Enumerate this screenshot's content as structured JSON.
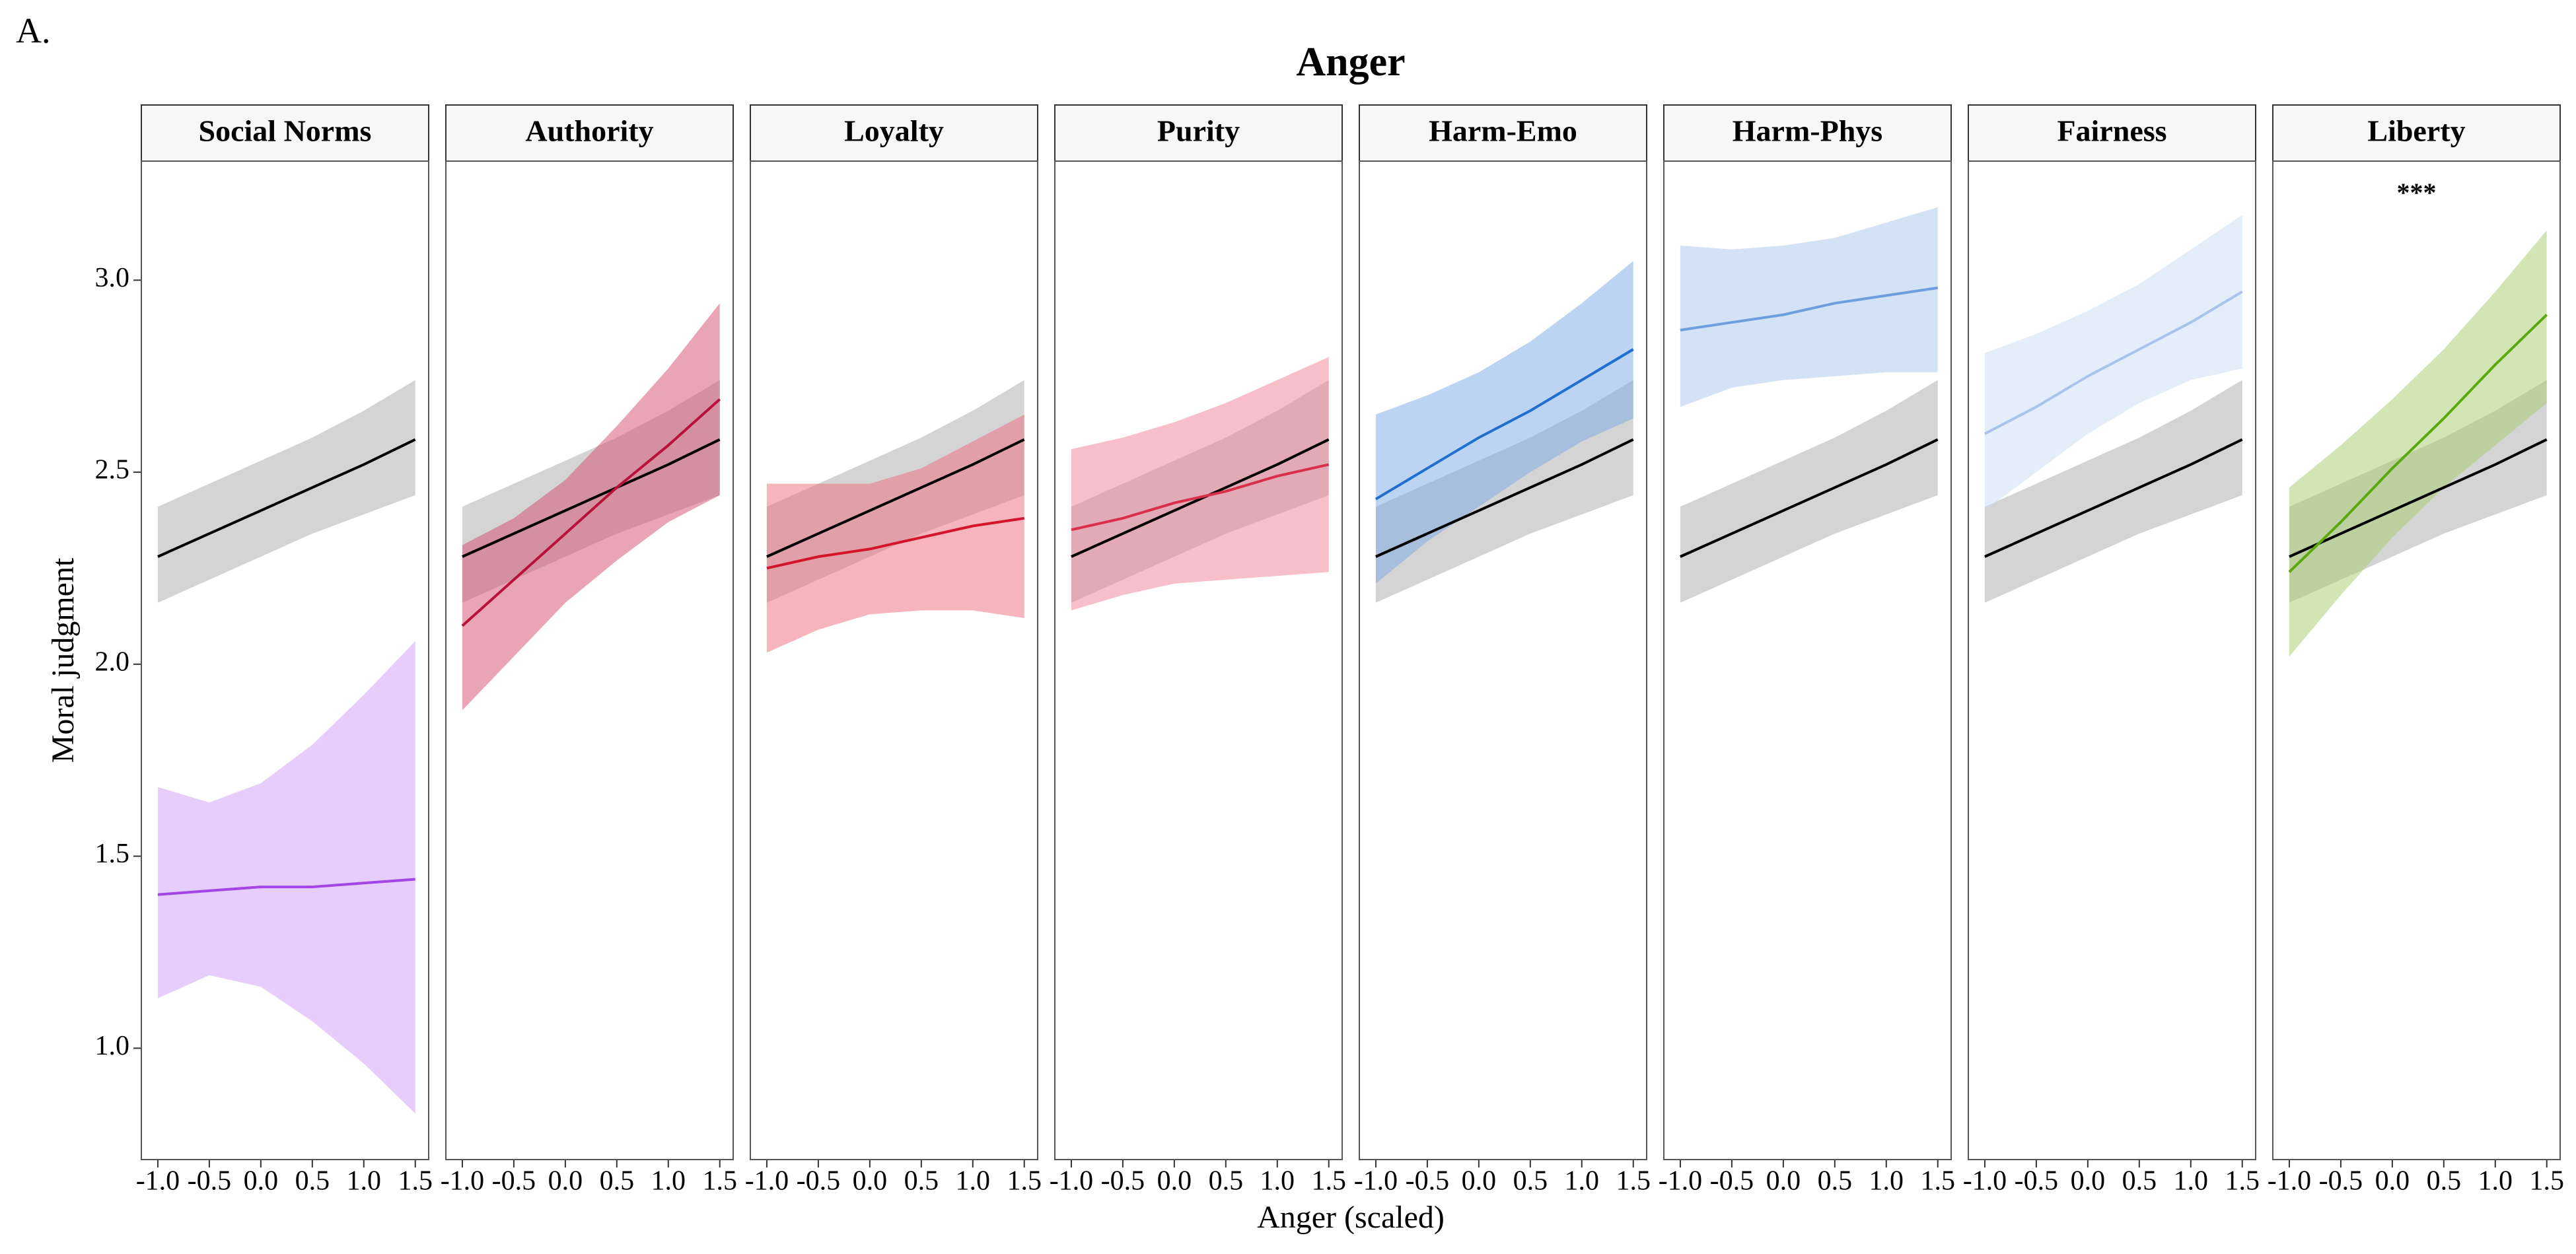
{
  "panel_label": "A.",
  "title": "Anger",
  "x_label": "Anger (scaled)",
  "y_label": "Moral judgment",
  "chart_data": [
    {
      "type": "line",
      "title": "Social Norms",
      "x": [
        -1.0,
        -0.5,
        0.0,
        0.5,
        1.0,
        1.5
      ],
      "xlim": [
        -1.16,
        1.63
      ],
      "ylim": [
        0.71,
        3.31
      ],
      "xticks": [
        {
          "value": -1.0,
          "label": "-1.0"
        },
        -0.5,
        {
          "value": 0.0,
          "label": "0.0"
        },
        0.5,
        {
          "value": 1.0,
          "label": "1.0"
        },
        1.5
      ],
      "yticks": [
        {
          "value": 1.0,
          "label": "1.0"
        },
        1.5,
        {
          "value": 2.0,
          "label": "2.0"
        },
        2.5,
        {
          "value": 3.0,
          "label": "3.0"
        }
      ],
      "series": [
        {
          "color": "#000000",
          "fill": "#a9a9a9",
          "values": [
            2.28,
            2.34,
            2.4,
            2.46,
            2.52,
            2.585
          ],
          "lower": [
            2.16,
            2.22,
            2.28,
            2.34,
            2.39,
            2.44
          ],
          "upper": [
            2.41,
            2.47,
            2.53,
            2.59,
            2.66,
            2.74
          ]
        },
        {
          "color": "#a445e8",
          "fill": "#cf9cf7",
          "values": [
            1.4,
            1.41,
            1.42,
            1.42,
            1.43,
            1.44
          ],
          "lower": [
            1.13,
            1.19,
            1.16,
            1.07,
            0.96,
            0.83
          ],
          "upper": [
            1.68,
            1.64,
            1.69,
            1.79,
            1.92,
            2.06
          ]
        }
      ]
    },
    {
      "type": "line",
      "title": "Authority",
      "x": [
        -1.0,
        -0.5,
        0.0,
        0.5,
        1.0,
        1.5
      ],
      "xlim": [
        -1.16,
        1.63
      ],
      "ylim": [
        0.71,
        3.31
      ],
      "xticks": [
        {
          "value": -1.0,
          "label": "-1.0"
        },
        -0.5,
        {
          "value": 0.0,
          "label": "0.0"
        },
        0.5,
        {
          "value": 1.0,
          "label": "1.0"
        },
        1.5
      ],
      "series": [
        {
          "color": "#000000",
          "fill": "#a9a9a9",
          "values": [
            2.28,
            2.34,
            2.4,
            2.46,
            2.52,
            2.585
          ],
          "lower": [
            2.16,
            2.22,
            2.28,
            2.34,
            2.39,
            2.44
          ],
          "upper": [
            2.41,
            2.47,
            2.53,
            2.59,
            2.66,
            2.74
          ]
        },
        {
          "color": "#b8123a",
          "fill": "#d44c6c",
          "values": [
            2.1,
            2.22,
            2.34,
            2.46,
            2.57,
            2.69
          ],
          "lower": [
            1.88,
            2.02,
            2.16,
            2.27,
            2.37,
            2.44
          ],
          "upper": [
            2.31,
            2.38,
            2.48,
            2.62,
            2.77,
            2.94
          ]
        }
      ]
    },
    {
      "type": "line",
      "title": "Loyalty",
      "x": [
        -1.0,
        -0.5,
        0.0,
        0.5,
        1.0,
        1.5
      ],
      "xlim": [
        -1.16,
        1.63
      ],
      "ylim": [
        0.71,
        3.31
      ],
      "xticks": [
        {
          "value": -1.0,
          "label": "-1.0"
        },
        -0.5,
        {
          "value": 0.0,
          "label": "0.0"
        },
        0.5,
        {
          "value": 1.0,
          "label": "1.0"
        },
        1.5
      ],
      "series": [
        {
          "color": "#000000",
          "fill": "#a9a9a9",
          "values": [
            2.28,
            2.34,
            2.4,
            2.46,
            2.52,
            2.585
          ],
          "lower": [
            2.16,
            2.22,
            2.28,
            2.34,
            2.39,
            2.44
          ],
          "upper": [
            2.41,
            2.47,
            2.53,
            2.59,
            2.66,
            2.74
          ]
        },
        {
          "color": "#d4142a",
          "fill": "#ee6a7c",
          "values": [
            2.25,
            2.28,
            2.3,
            2.33,
            2.36,
            2.38
          ],
          "lower": [
            2.03,
            2.09,
            2.13,
            2.14,
            2.14,
            2.12
          ],
          "upper": [
            2.47,
            2.47,
            2.47,
            2.51,
            2.58,
            2.65
          ]
        }
      ]
    },
    {
      "type": "line",
      "title": "Purity",
      "x": [
        -1.0,
        -0.5,
        0.0,
        0.5,
        1.0,
        1.5
      ],
      "xlim": [
        -1.16,
        1.63
      ],
      "ylim": [
        0.71,
        3.31
      ],
      "xticks": [
        {
          "value": -1.0,
          "label": "-1.0"
        },
        -0.5,
        {
          "value": 0.0,
          "label": "0.0"
        },
        0.5,
        {
          "value": 1.0,
          "label": "1.0"
        },
        1.5
      ],
      "series": [
        {
          "color": "#000000",
          "fill": "#a9a9a9",
          "values": [
            2.28,
            2.34,
            2.4,
            2.46,
            2.52,
            2.585
          ],
          "lower": [
            2.16,
            2.22,
            2.28,
            2.34,
            2.39,
            2.44
          ],
          "upper": [
            2.41,
            2.47,
            2.53,
            2.59,
            2.66,
            2.74
          ]
        },
        {
          "color": "#d92f4b",
          "fill": "#ee7f95",
          "values": [
            2.35,
            2.38,
            2.42,
            2.45,
            2.49,
            2.52
          ],
          "lower": [
            2.14,
            2.18,
            2.21,
            2.22,
            2.23,
            2.24
          ],
          "upper": [
            2.56,
            2.59,
            2.63,
            2.68,
            2.74,
            2.8
          ]
        }
      ]
    },
    {
      "type": "line",
      "title": "Harm-Emo",
      "x": [
        -1.0,
        -0.5,
        0.0,
        0.5,
        1.0,
        1.5
      ],
      "xlim": [
        -1.16,
        1.63
      ],
      "ylim": [
        0.71,
        3.31
      ],
      "xticks": [
        {
          "value": -1.0,
          "label": "-1.0"
        },
        -0.5,
        {
          "value": 0.0,
          "label": "0.0"
        },
        0.5,
        {
          "value": 1.0,
          "label": "1.0"
        },
        1.5
      ],
      "series": [
        {
          "color": "#000000",
          "fill": "#a9a9a9",
          "values": [
            2.28,
            2.34,
            2.4,
            2.46,
            2.52,
            2.585
          ],
          "lower": [
            2.16,
            2.22,
            2.28,
            2.34,
            2.39,
            2.44
          ],
          "upper": [
            2.41,
            2.47,
            2.53,
            2.59,
            2.66,
            2.74
          ]
        },
        {
          "color": "#1f6fd0",
          "fill": "#7aa8e6",
          "values": [
            2.43,
            2.51,
            2.59,
            2.66,
            2.74,
            2.82
          ],
          "lower": [
            2.21,
            2.32,
            2.41,
            2.5,
            2.58,
            2.64
          ],
          "upper": [
            2.65,
            2.7,
            2.76,
            2.84,
            2.94,
            3.05
          ]
        }
      ]
    },
    {
      "type": "line",
      "title": "Harm-Phys",
      "x": [
        -1.0,
        -0.5,
        0.0,
        0.5,
        1.0,
        1.5
      ],
      "xlim": [
        -1.16,
        1.63
      ],
      "ylim": [
        0.71,
        3.31
      ],
      "xticks": [
        {
          "value": -1.0,
          "label": "-1.0"
        },
        -0.5,
        {
          "value": 0.0,
          "label": "0.0"
        },
        0.5,
        {
          "value": 1.0,
          "label": "1.0"
        },
        1.5
      ],
      "series": [
        {
          "color": "#000000",
          "fill": "#a9a9a9",
          "values": [
            2.28,
            2.34,
            2.4,
            2.46,
            2.52,
            2.585
          ],
          "lower": [
            2.16,
            2.22,
            2.28,
            2.34,
            2.39,
            2.44
          ],
          "upper": [
            2.41,
            2.47,
            2.53,
            2.59,
            2.66,
            2.74
          ]
        },
        {
          "color": "#6d9fdf",
          "fill": "#aac6ec",
          "values": [
            2.87,
            2.89,
            2.91,
            2.94,
            2.96,
            2.98
          ],
          "lower": [
            2.67,
            2.72,
            2.74,
            2.75,
            2.76,
            2.76
          ],
          "upper": [
            3.09,
            3.08,
            3.09,
            3.11,
            3.15,
            3.19
          ]
        }
      ]
    },
    {
      "type": "line",
      "title": "Fairness",
      "x": [
        -1.0,
        -0.5,
        0.0,
        0.5,
        1.0,
        1.5
      ],
      "xlim": [
        -1.16,
        1.63
      ],
      "ylim": [
        0.71,
        3.31
      ],
      "xticks": [
        {
          "value": -1.0,
          "label": "-1.0"
        },
        -0.5,
        {
          "value": 0.0,
          "label": "0.0"
        },
        0.5,
        {
          "value": 1.0,
          "label": "1.0"
        },
        1.5
      ],
      "series": [
        {
          "color": "#000000",
          "fill": "#a9a9a9",
          "values": [
            2.28,
            2.34,
            2.4,
            2.46,
            2.52,
            2.585
          ],
          "lower": [
            2.16,
            2.22,
            2.28,
            2.34,
            2.39,
            2.44
          ],
          "upper": [
            2.41,
            2.47,
            2.53,
            2.59,
            2.66,
            2.74
          ]
        },
        {
          "color": "#a8c4ec",
          "fill": "#c9dbf6",
          "values": [
            2.6,
            2.67,
            2.75,
            2.82,
            2.89,
            2.97
          ],
          "lower": [
            2.4,
            2.5,
            2.6,
            2.68,
            2.74,
            2.77
          ],
          "upper": [
            2.81,
            2.86,
            2.92,
            2.99,
            3.08,
            3.17
          ]
        }
      ]
    },
    {
      "type": "line",
      "title": "Liberty",
      "annotation": "***",
      "x": [
        -1.0,
        -0.5,
        0.0,
        0.5,
        1.0,
        1.5
      ],
      "xlim": [
        -1.16,
        1.63
      ],
      "ylim": [
        0.71,
        3.31
      ],
      "xticks": [
        {
          "value": -1.0,
          "label": "-1.0"
        },
        -0.5,
        {
          "value": 0.0,
          "label": "0.0"
        },
        0.5,
        {
          "value": 1.0,
          "label": "1.0"
        },
        1.5
      ],
      "series": [
        {
          "color": "#000000",
          "fill": "#a9a9a9",
          "values": [
            2.28,
            2.34,
            2.4,
            2.46,
            2.52,
            2.585
          ],
          "lower": [
            2.16,
            2.22,
            2.28,
            2.34,
            2.39,
            2.44
          ],
          "upper": [
            2.41,
            2.47,
            2.53,
            2.59,
            2.66,
            2.74
          ]
        },
        {
          "color": "#5ea80f",
          "fill": "#a6cc6a",
          "values": [
            2.24,
            2.37,
            2.51,
            2.64,
            2.78,
            2.91
          ],
          "lower": [
            2.02,
            2.18,
            2.33,
            2.46,
            2.57,
            2.68
          ],
          "upper": [
            2.46,
            2.57,
            2.69,
            2.82,
            2.97,
            3.13
          ]
        }
      ]
    }
  ]
}
